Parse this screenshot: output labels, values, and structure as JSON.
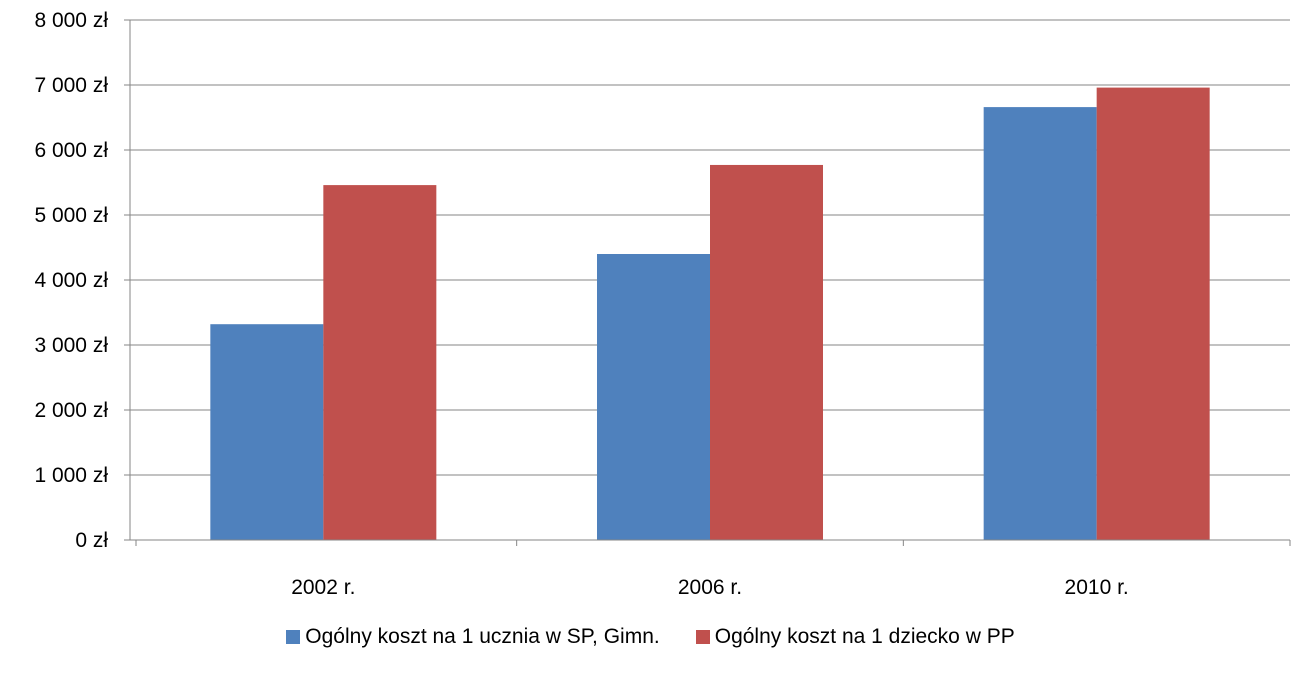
{
  "chart_data": {
    "type": "bar",
    "categories": [
      "2002 r.",
      "2006 r.",
      "2010 r."
    ],
    "series": [
      {
        "name": "Ogólny koszt na 1 ucznia w SP, Gimn.",
        "values": [
          3320,
          4400,
          6660
        ],
        "color": "#4F81BD"
      },
      {
        "name": "Ogólny koszt na 1 dziecko w PP",
        "values": [
          5460,
          5770,
          6960
        ],
        "color": "#C0504D"
      }
    ],
    "ylim": [
      0,
      8000
    ],
    "y_ticks": [
      0,
      1000,
      2000,
      3000,
      4000,
      5000,
      6000,
      7000,
      8000
    ],
    "y_tick_labels": [
      "0 zł",
      "1 000 zł",
      "2 000 zł",
      "3 000 zł",
      "4 000 zł",
      "5 000 zł",
      "6 000 zł",
      "7 000 zł",
      "8 000 zł"
    ],
    "grid": true,
    "legend_position": "bottom",
    "title": "",
    "xlabel": "",
    "ylabel": ""
  }
}
